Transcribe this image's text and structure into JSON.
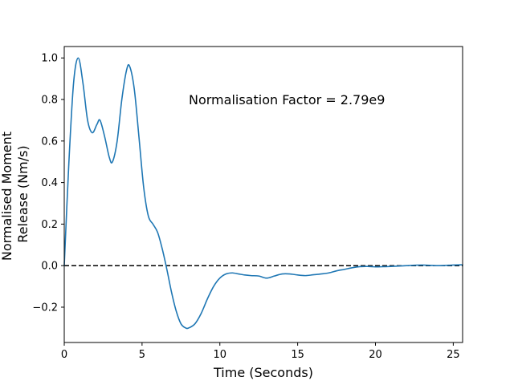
{
  "chart_data": {
    "type": "line",
    "title": "",
    "xlabel": "Time (Seconds)",
    "ylabel_lines": [
      "Normalised Moment",
      "Release (Nm/s)"
    ],
    "xlim": [
      0,
      25.6
    ],
    "ylim": [
      -0.37,
      1.055
    ],
    "xticks": [
      0,
      5,
      10,
      15,
      20,
      25
    ],
    "xtick_labels": [
      "0",
      "5",
      "10",
      "15",
      "20",
      "25"
    ],
    "yticks": [
      -0.2,
      0.0,
      0.2,
      0.4,
      0.6,
      0.8,
      1.0
    ],
    "ytick_labels": [
      "−0.2",
      "0.0",
      "0.2",
      "0.4",
      "0.6",
      "0.8",
      "1.0"
    ],
    "grid": false,
    "annotation": {
      "text": "Normalisation Factor = 2.79e9",
      "x": 8.0,
      "y": 0.8
    },
    "reference_line": {
      "y": 0.0,
      "style": "dashed",
      "color": "#000000"
    },
    "series": [
      {
        "color": "#1f77b4",
        "x": [
          0,
          0.3,
          0.6,
          0.9,
          1.2,
          1.5,
          1.8,
          2.1,
          2.3,
          2.6,
          2.9,
          3.1,
          3.4,
          3.7,
          4.0,
          4.2,
          4.5,
          4.8,
          5.1,
          5.4,
          5.7,
          6.0,
          6.3,
          6.6,
          6.9,
          7.2,
          7.5,
          7.8,
          8.0,
          8.4,
          8.8,
          9.2,
          9.6,
          10.0,
          10.4,
          10.8,
          11.2,
          11.6,
          12.0,
          12.5,
          13.0,
          13.5,
          14.0,
          14.5,
          15.0,
          15.5,
          16.0,
          16.5,
          17.0,
          17.5,
          18.0,
          18.5,
          19.0,
          19.5,
          20.0,
          20.5,
          21.0,
          22.0,
          23.0,
          24.0,
          25.0,
          25.6
        ],
        "y": [
          0.0,
          0.5,
          0.88,
          1.0,
          0.88,
          0.7,
          0.64,
          0.68,
          0.7,
          0.62,
          0.52,
          0.5,
          0.6,
          0.8,
          0.94,
          0.96,
          0.85,
          0.62,
          0.38,
          0.24,
          0.2,
          0.16,
          0.08,
          -0.02,
          -0.13,
          -0.22,
          -0.28,
          -0.3,
          -0.3,
          -0.28,
          -0.23,
          -0.16,
          -0.1,
          -0.06,
          -0.04,
          -0.035,
          -0.04,
          -0.045,
          -0.048,
          -0.05,
          -0.06,
          -0.05,
          -0.04,
          -0.04,
          -0.045,
          -0.048,
          -0.044,
          -0.04,
          -0.035,
          -0.025,
          -0.018,
          -0.01,
          -0.005,
          -0.004,
          -0.006,
          -0.005,
          -0.004,
          0.0,
          0.003,
          0.0,
          0.003,
          0.004
        ]
      }
    ]
  }
}
